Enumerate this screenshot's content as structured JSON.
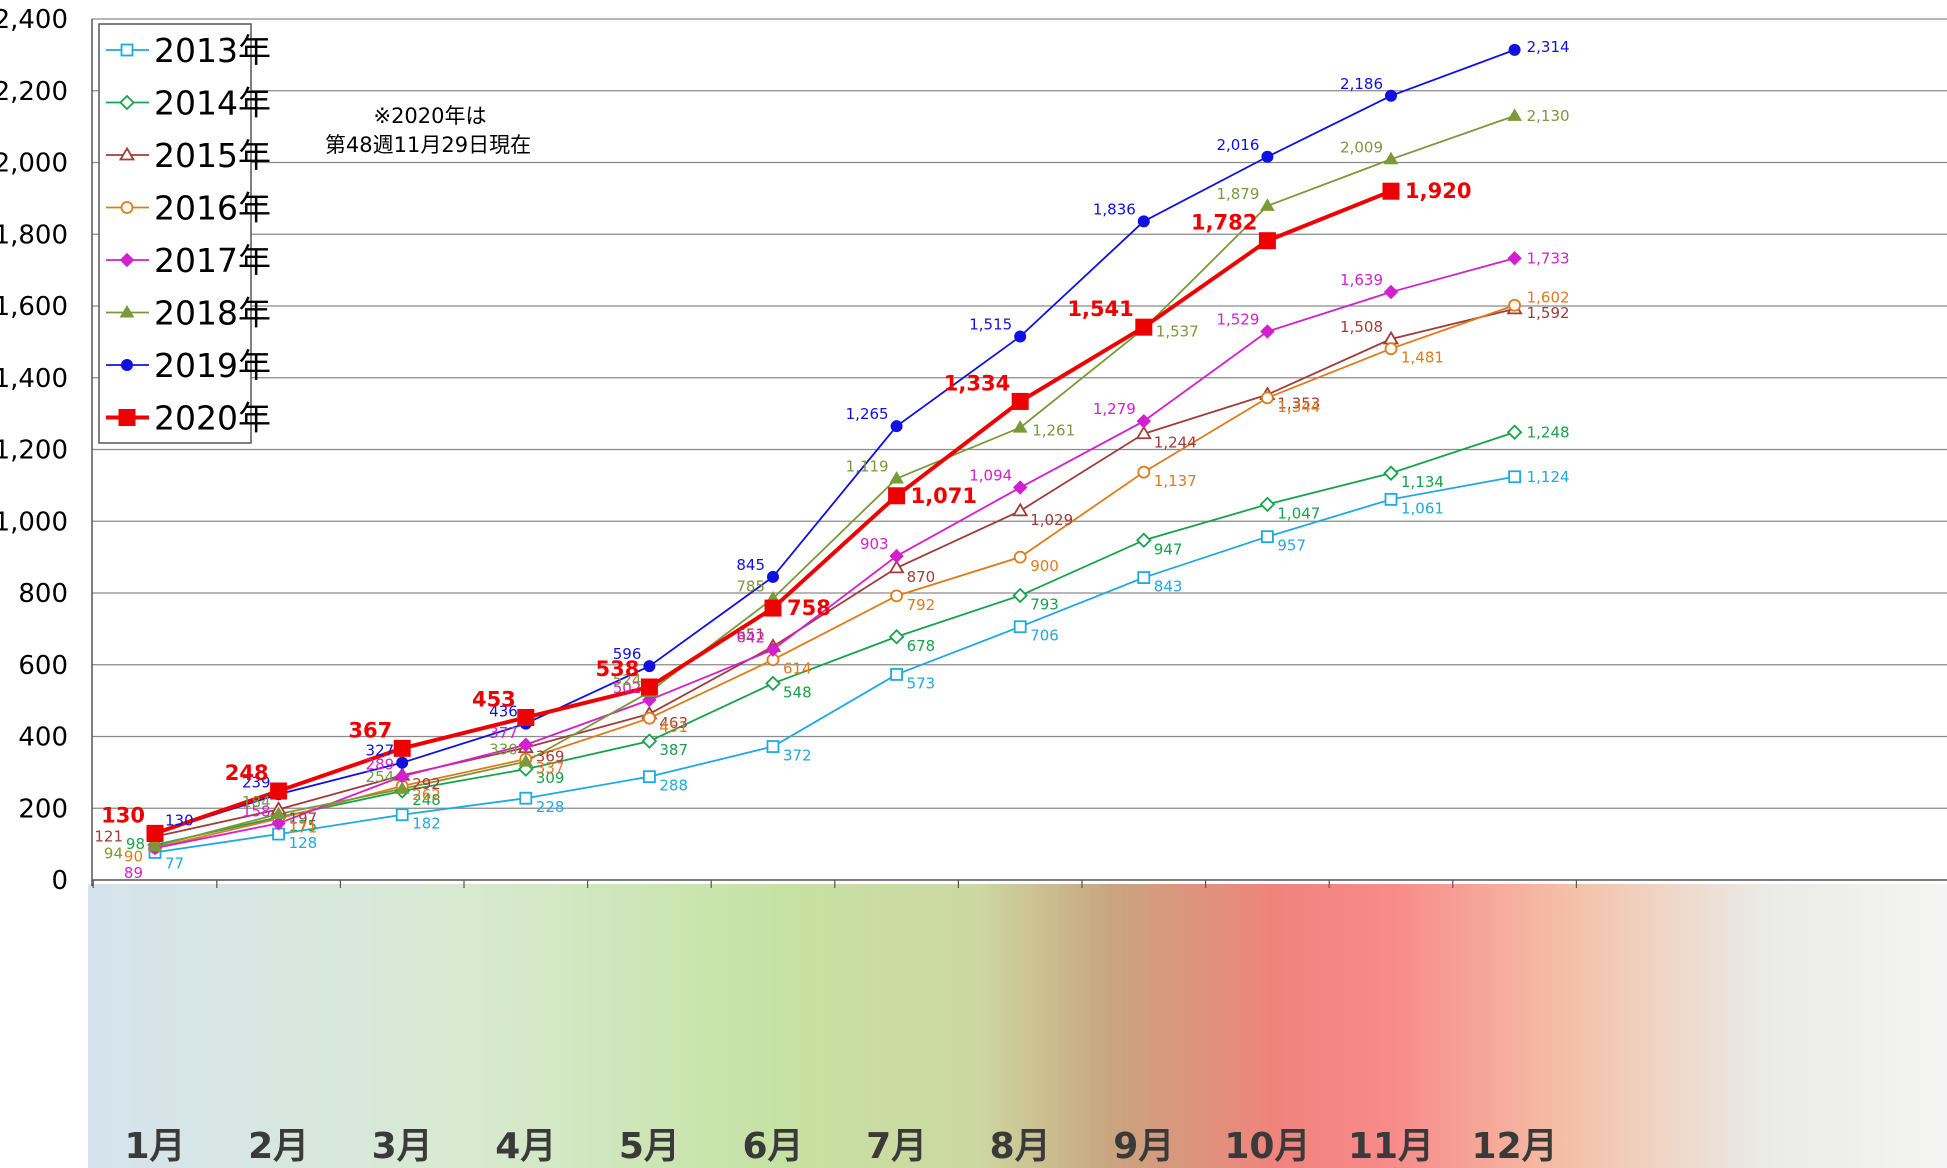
{
  "chart_data": {
    "type": "line",
    "title": "",
    "xlabel": "",
    "ylabel": "",
    "ylim": [
      0,
      2400
    ],
    "y_ticks": [
      "0",
      "200",
      "400",
      "600",
      "800",
      "1,000",
      "1,200",
      "1,400",
      "1,600",
      "1,800",
      "2,000",
      "2,200",
      "2,400"
    ],
    "categories": [
      "1月",
      "2月",
      "3月",
      "4月",
      "5月",
      "6月",
      "7月",
      "8月",
      "9月",
      "10月",
      "11月",
      "12月"
    ],
    "grid": true,
    "legend_position": "top-left",
    "note": [
      "※2020年は",
      "第48週11月29日現在"
    ],
    "series": [
      {
        "name": "2013年",
        "color": "#1fa9e1",
        "marker": "square-open",
        "values": [
          77,
          128,
          182,
          228,
          288,
          372,
          573,
          706,
          843,
          957,
          1061,
          1124
        ],
        "labels": [
          "77",
          "128",
          "182",
          "228",
          "288",
          "372",
          "573",
          "706",
          "843",
          "957",
          "1,061",
          "1,124"
        ]
      },
      {
        "name": "2014年",
        "color": "#16a34a",
        "marker": "diamond-open",
        "values": [
          98,
          175,
          248,
          309,
          387,
          548,
          678,
          793,
          947,
          1047,
          1134,
          1248
        ],
        "labels": [
          "98",
          "175",
          "248",
          "309",
          "387",
          "548",
          "678",
          "793",
          "947",
          "1,047",
          "1,134",
          "1,248"
        ]
      },
      {
        "name": "2015年",
        "color": "#a23b3b",
        "marker": "triangle-open",
        "values": [
          121,
          197,
          292,
          369,
          463,
          651,
          870,
          1029,
          1244,
          1353,
          1508,
          1592
        ],
        "labels": [
          "121",
          "197",
          "292",
          "369",
          "463",
          "651",
          "870",
          "1,029",
          "1,244",
          "1,353",
          "1,508",
          "1,592"
        ]
      },
      {
        "name": "2016年",
        "color": "#e07b1a",
        "marker": "circle-open",
        "values": [
          90,
          171,
          262,
          337,
          451,
          614,
          792,
          900,
          1137,
          1344,
          1481,
          1602
        ],
        "labels": [
          "90",
          "171",
          "262",
          "337",
          "451",
          "614",
          "792",
          "900",
          "1,137",
          "1,344",
          "1,481",
          "1,602"
        ]
      },
      {
        "name": "2017年",
        "color": "#d21fcf",
        "marker": "diamond",
        "values": [
          89,
          158,
          289,
          377,
          502,
          642,
          903,
          1094,
          1279,
          1529,
          1639,
          1733
        ],
        "labels": [
          "89",
          "158",
          "289",
          "377",
          "502",
          "642",
          "903",
          "1,094",
          "1,279",
          "1,529",
          "1,639",
          "1,733"
        ]
      },
      {
        "name": "2018年",
        "color": "#7a9a3a",
        "marker": "triangle",
        "values": [
          94,
          184,
          254,
          330,
          524,
          785,
          1119,
          1261,
          1537,
          1879,
          2009,
          2130
        ],
        "labels": [
          "94",
          "184",
          "254",
          "330",
          "524",
          "785",
          "1,119",
          "1,261",
          "1,537",
          "1,879",
          "2,009",
          "2,130"
        ]
      },
      {
        "name": "2019年",
        "color": "#1010e0",
        "marker": "circle",
        "values": [
          130,
          239,
          327,
          436,
          596,
          845,
          1265,
          1515,
          1836,
          2016,
          2186,
          2314
        ],
        "labels": [
          "130",
          "239",
          "327",
          "436",
          "596",
          "845",
          "1,265",
          "1,515",
          "1,836",
          "2,016",
          "2,186",
          "2,314"
        ]
      },
      {
        "name": "2020年",
        "color": "#ee0000",
        "marker": "square",
        "values": [
          130,
          248,
          367,
          453,
          538,
          758,
          1071,
          1334,
          1541,
          1782,
          1920,
          null
        ],
        "labels": [
          "130",
          "248",
          "367",
          "453",
          "538",
          "758",
          "1,071",
          "1,334",
          "1,541",
          "1,782",
          "1,920",
          ""
        ]
      }
    ]
  }
}
